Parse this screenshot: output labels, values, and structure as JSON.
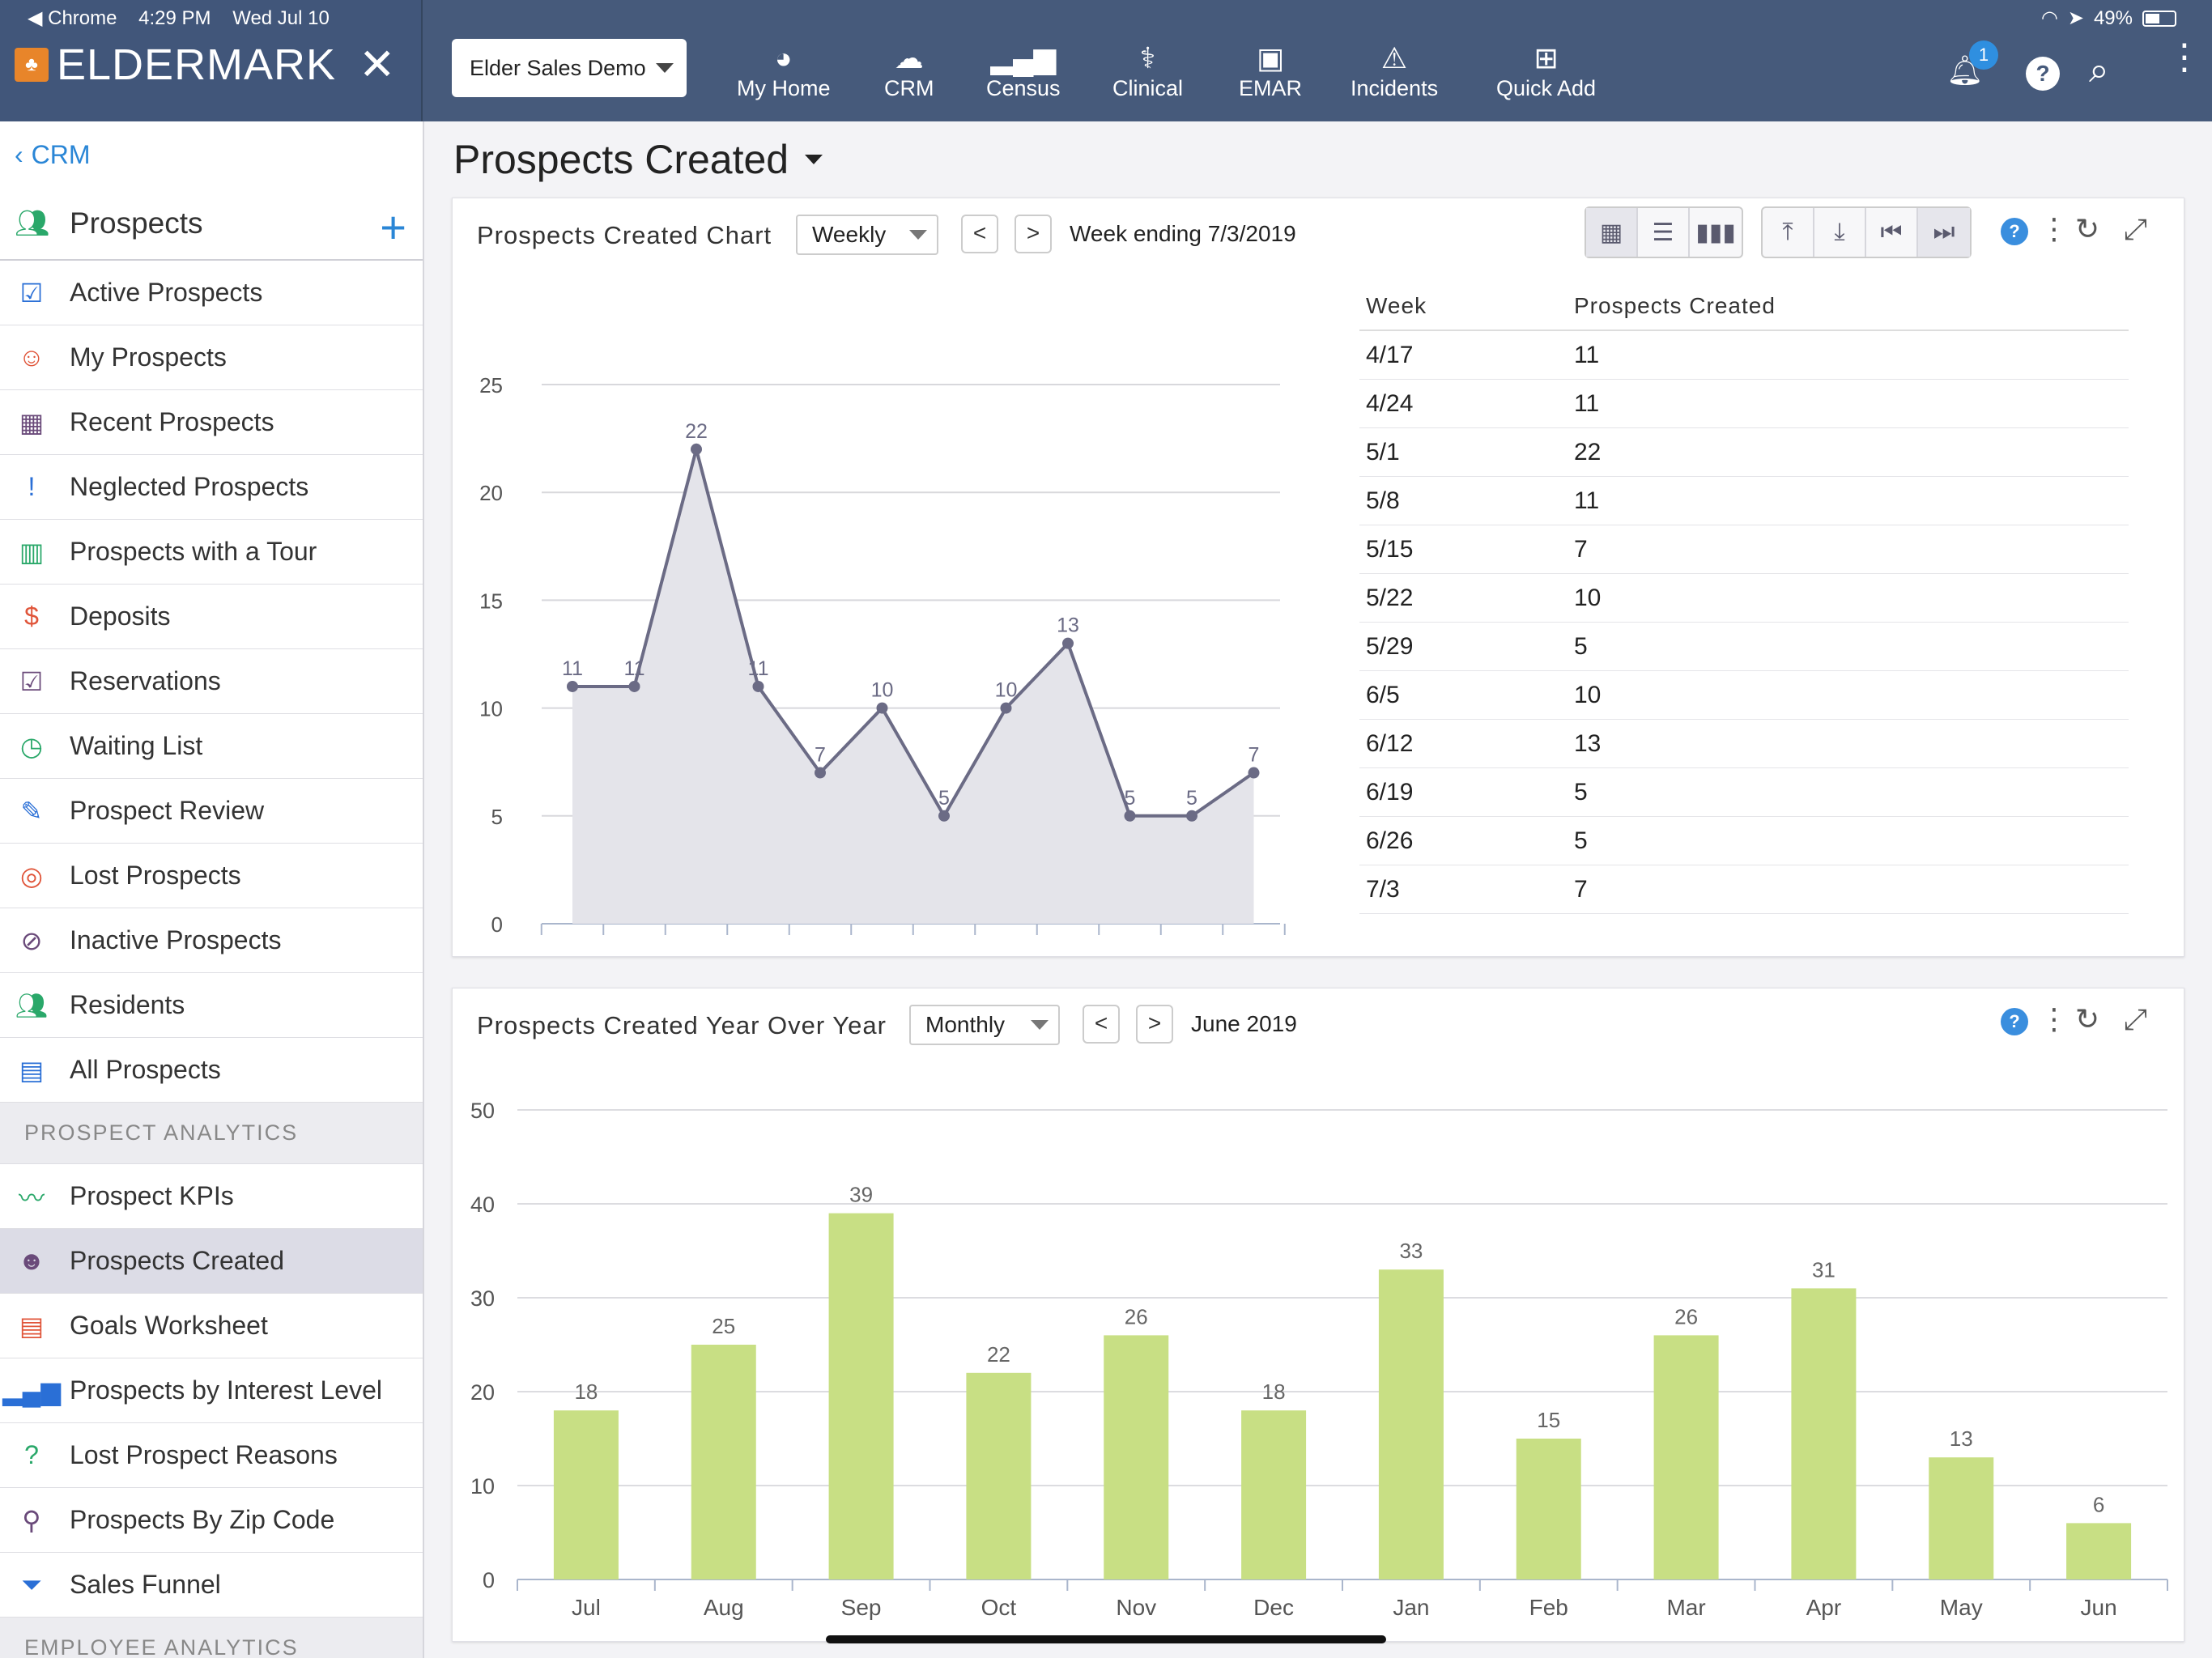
{
  "status": {
    "app": "◀ Chrome",
    "time": "4:29 PM",
    "date": "Wed Jul 10",
    "battery": "49%"
  },
  "app": {
    "brand": "ELDERMARK",
    "close": "✕",
    "community": "Elder Sales Demo"
  },
  "nav": [
    {
      "label": "My Home",
      "icon": "dashboard-icon"
    },
    {
      "label": "CRM",
      "icon": "cloud-icon"
    },
    {
      "label": "Census",
      "icon": "census-bars-icon"
    },
    {
      "label": "Clinical",
      "icon": "stethoscope-icon"
    },
    {
      "label": "EMAR",
      "icon": "pill-bottle-icon"
    },
    {
      "label": "Incidents",
      "icon": "incident-icon"
    },
    {
      "label": "Quick Add",
      "icon": "plus-square-icon"
    }
  ],
  "notifications": {
    "count": "1"
  },
  "sidebar": {
    "back": "CRM",
    "section": "Prospects",
    "items": [
      {
        "label": "Active Prospects"
      },
      {
        "label": "My Prospects"
      },
      {
        "label": "Recent Prospects"
      },
      {
        "label": "Neglected Prospects"
      },
      {
        "label": "Prospects with a Tour"
      },
      {
        "label": "Deposits"
      },
      {
        "label": "Reservations"
      },
      {
        "label": "Waiting List"
      },
      {
        "label": "Prospect Review"
      },
      {
        "label": "Lost Prospects"
      },
      {
        "label": "Inactive Prospects"
      },
      {
        "label": "Residents"
      },
      {
        "label": "All Prospects"
      }
    ],
    "analytics_heading": "PROSPECT ANALYTICS",
    "analytics": [
      {
        "label": "Prospect KPIs"
      },
      {
        "label": "Prospects Created"
      },
      {
        "label": "Goals Worksheet"
      },
      {
        "label": "Prospects by Interest Level"
      },
      {
        "label": "Lost Prospect Reasons"
      },
      {
        "label": "Prospects By Zip Code"
      },
      {
        "label": "Sales Funnel"
      }
    ],
    "employee_heading": "EMPLOYEE ANALYTICS"
  },
  "page": {
    "title": "Prospects Created"
  },
  "weekly_panel": {
    "title": "Prospects Created Chart",
    "period": "Weekly",
    "prev": "<",
    "next": ">",
    "range": "Week ending 7/3/2019",
    "table": {
      "headers": [
        "Week",
        "Prospects Created"
      ],
      "rows": [
        [
          "4/17",
          "11"
        ],
        [
          "4/24",
          "11"
        ],
        [
          "5/1",
          "22"
        ],
        [
          "5/8",
          "11"
        ],
        [
          "5/15",
          "7"
        ],
        [
          "5/22",
          "10"
        ],
        [
          "5/29",
          "5"
        ],
        [
          "6/5",
          "10"
        ],
        [
          "6/12",
          "13"
        ],
        [
          "6/19",
          "5"
        ],
        [
          "6/26",
          "5"
        ],
        [
          "7/3",
          "7"
        ]
      ]
    }
  },
  "yoy_panel": {
    "title": "Prospects Created Year Over Year",
    "period": "Monthly",
    "prev": "<",
    "next": ">",
    "range": "June 2019"
  },
  "chart_data": [
    {
      "type": "area",
      "title": "Prospects Created Chart",
      "x": [
        "4/17",
        "4/24",
        "5/1",
        "5/8",
        "5/15",
        "5/22",
        "5/29",
        "6/5",
        "6/12",
        "6/19",
        "6/26",
        "7/3"
      ],
      "values": [
        11,
        11,
        22,
        11,
        7,
        10,
        5,
        10,
        13,
        5,
        5,
        7
      ],
      "yticks": [
        0,
        5,
        10,
        15,
        20,
        25
      ],
      "ylim": [
        0,
        25
      ],
      "grid": true,
      "colors": {
        "line": "#6b6b85",
        "fill": "#e4e4ea"
      }
    },
    {
      "type": "bar",
      "title": "Prospects Created Year Over Year",
      "categories": [
        "Jul",
        "Aug",
        "Sep",
        "Oct",
        "Nov",
        "Dec",
        "Jan",
        "Feb",
        "Mar",
        "Apr",
        "May",
        "Jun"
      ],
      "values": [
        18,
        25,
        39,
        22,
        26,
        18,
        33,
        15,
        26,
        31,
        13,
        6
      ],
      "yticks": [
        0,
        10,
        20,
        30,
        40,
        50
      ],
      "ylim": [
        0,
        50
      ],
      "grid": true,
      "colors": {
        "bar": "#c8df84"
      }
    }
  ]
}
